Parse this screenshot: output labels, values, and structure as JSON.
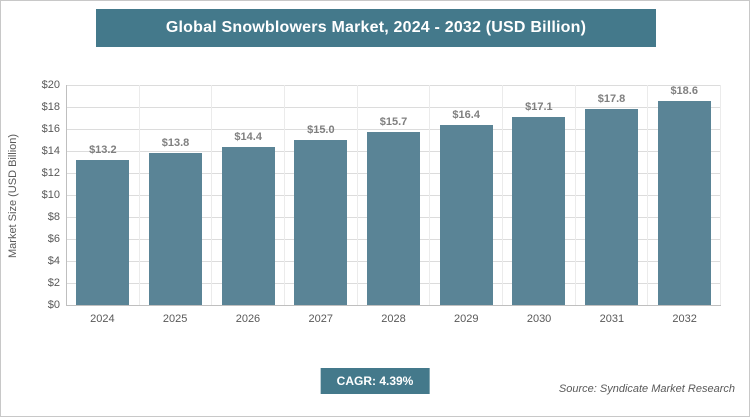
{
  "header": {
    "title": "Global Snowblowers Market, 2024 - 2032 (USD Billion)"
  },
  "chart_data": {
    "type": "bar",
    "title": "Global Snowblowers Market, 2024 - 2032 (USD Billion)",
    "categories": [
      "2024",
      "2025",
      "2026",
      "2027",
      "2028",
      "2029",
      "2030",
      "2031",
      "2032"
    ],
    "values": [
      13.2,
      13.8,
      14.4,
      15.0,
      15.7,
      16.4,
      17.1,
      17.8,
      18.6
    ],
    "xlabel": "",
    "ylabel": "Market Size (USD Billion)",
    "ylim": [
      0,
      20
    ],
    "ytick_step": 2,
    "ytick_prefix": "$",
    "value_prefix": "$",
    "grid": "horizontal",
    "legend": "none",
    "bar_color": "#5a8496"
  },
  "footer": {
    "cagr_label": "CAGR: 4.39%",
    "source": "Source: Syndicate Market Research"
  },
  "colors": {
    "accent_teal": "#44798b",
    "bar_fill": "#5a8496",
    "axis_text": "#595959",
    "value_text": "#7f7f7f",
    "gridline": "#dcdcdc"
  }
}
